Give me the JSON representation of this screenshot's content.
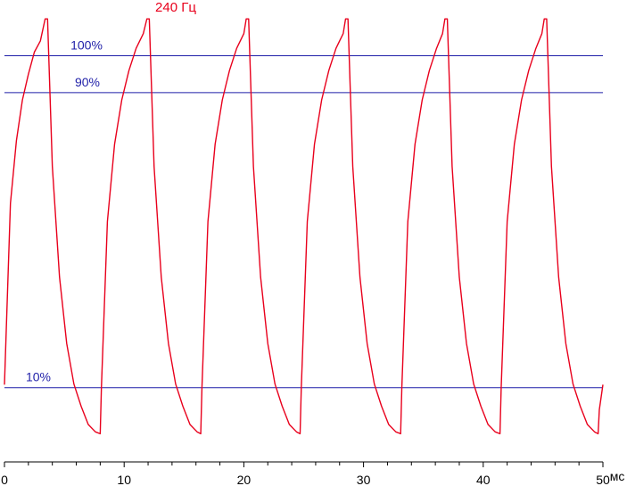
{
  "chart_data": {
    "type": "line",
    "title": "240 Гц",
    "title_color": "#e8001c",
    "x_unit_label": "мс",
    "xlim": [
      0,
      50
    ],
    "x_major_ticks": [
      0,
      10,
      20,
      30,
      40,
      50
    ],
    "x_minor_step": 2,
    "ylim_percent": [
      -7,
      111
    ],
    "grid": false,
    "reference_lines": [
      {
        "label": "100%",
        "value": 100,
        "color": "#1f1fa8"
      },
      {
        "label": "90%",
        "value": 90,
        "color": "#1f1fa8"
      },
      {
        "label": "10%",
        "value": 10,
        "color": "#1f1fa8"
      }
    ],
    "series": [
      {
        "color": "#e8001c",
        "points": [
          [
            0.0,
            10.8
          ],
          [
            0.5,
            60
          ],
          [
            1.0,
            77
          ],
          [
            1.5,
            88
          ],
          [
            2.0,
            95
          ],
          [
            2.5,
            101
          ],
          [
            3.0,
            104
          ],
          [
            3.4,
            110
          ],
          [
            3.6,
            110
          ],
          [
            4.0,
            70
          ],
          [
            4.6,
            40
          ],
          [
            5.2,
            22
          ],
          [
            5.8,
            11
          ],
          [
            6.4,
            5
          ],
          [
            7.0,
            0
          ],
          [
            7.6,
            -2
          ],
          [
            8.0,
            -2.5
          ],
          [
            8.1,
            10
          ],
          [
            8.6,
            55
          ],
          [
            9.2,
            76
          ],
          [
            9.8,
            88
          ],
          [
            10.4,
            96
          ],
          [
            11.0,
            102
          ],
          [
            11.6,
            106
          ],
          [
            11.9,
            110
          ],
          [
            12.1,
            110
          ],
          [
            12.5,
            70
          ],
          [
            13.1,
            40
          ],
          [
            13.7,
            22
          ],
          [
            14.3,
            11
          ],
          [
            14.9,
            5
          ],
          [
            15.5,
            0
          ],
          [
            16.1,
            -2
          ],
          [
            16.4,
            -2.5
          ],
          [
            16.5,
            10
          ],
          [
            17.0,
            55
          ],
          [
            17.6,
            76
          ],
          [
            18.2,
            88
          ],
          [
            18.8,
            96
          ],
          [
            19.4,
            102
          ],
          [
            20.0,
            106
          ],
          [
            20.2,
            110
          ],
          [
            20.4,
            110
          ],
          [
            20.8,
            70
          ],
          [
            21.4,
            40
          ],
          [
            22.0,
            22
          ],
          [
            22.6,
            11
          ],
          [
            23.2,
            5
          ],
          [
            23.8,
            0
          ],
          [
            24.4,
            -2
          ],
          [
            24.7,
            -2.5
          ],
          [
            24.8,
            10
          ],
          [
            25.3,
            55
          ],
          [
            25.9,
            76
          ],
          [
            26.5,
            88
          ],
          [
            27.1,
            96
          ],
          [
            27.7,
            102
          ],
          [
            28.3,
            106
          ],
          [
            28.5,
            110
          ],
          [
            28.7,
            110
          ],
          [
            29.1,
            70
          ],
          [
            29.7,
            40
          ],
          [
            30.3,
            22
          ],
          [
            30.9,
            11
          ],
          [
            31.5,
            5
          ],
          [
            32.1,
            0
          ],
          [
            32.7,
            -2
          ],
          [
            33.1,
            -2.5
          ],
          [
            33.2,
            10
          ],
          [
            33.7,
            55
          ],
          [
            34.3,
            76
          ],
          [
            34.9,
            88
          ],
          [
            35.5,
            96
          ],
          [
            36.1,
            102
          ],
          [
            36.6,
            106
          ],
          [
            36.8,
            110
          ],
          [
            37.0,
            110
          ],
          [
            37.4,
            70
          ],
          [
            38.0,
            40
          ],
          [
            38.6,
            22
          ],
          [
            39.2,
            11
          ],
          [
            39.8,
            5
          ],
          [
            40.4,
            0
          ],
          [
            41.0,
            -2
          ],
          [
            41.4,
            -2.5
          ],
          [
            41.5,
            10
          ],
          [
            42.0,
            55
          ],
          [
            42.6,
            76
          ],
          [
            43.2,
            88
          ],
          [
            43.8,
            96
          ],
          [
            44.4,
            102
          ],
          [
            44.9,
            106
          ],
          [
            45.1,
            110
          ],
          [
            45.3,
            110
          ],
          [
            45.7,
            70
          ],
          [
            46.3,
            40
          ],
          [
            46.9,
            22
          ],
          [
            47.5,
            11
          ],
          [
            48.1,
            5
          ],
          [
            48.7,
            0
          ],
          [
            49.3,
            -2
          ],
          [
            49.6,
            -2.5
          ],
          [
            49.7,
            4
          ],
          [
            50.0,
            10.8
          ]
        ]
      }
    ]
  }
}
